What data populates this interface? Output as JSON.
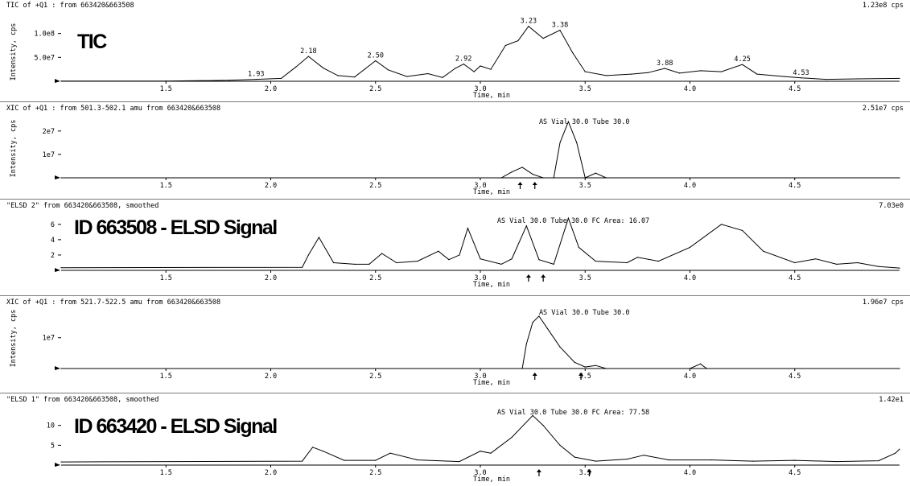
{
  "panels": [
    {
      "header_left": "TIC of +Q1 : from 663420&663508",
      "header_right": "1.23e8 cps",
      "overlay_label": "TIC",
      "ylabel": "Intensity, cps",
      "xlabel": "Time, min",
      "peak_labels": [
        "2.18",
        "2.50",
        "2.92",
        "3.23",
        "3.38",
        "3.88",
        "4.25",
        "4.53",
        "1.93"
      ],
      "annotation": ""
    },
    {
      "header_left": "XIC of +Q1 : from 501.3-502.1 amu from 663420&663508",
      "header_right": "2.51e7 cps",
      "overlay_label": "",
      "ylabel": "Intensity, cps",
      "xlabel": "Time, min",
      "peak_labels": [],
      "annotation": "AS Vial 30.0 Tube 30.0"
    },
    {
      "header_left": "\"ELSD 2\" from 663420&663508, smoothed",
      "header_right": "7.03e0",
      "overlay_label": "ID 663508 - ELSD Signal",
      "ylabel": "",
      "xlabel": "Time, min",
      "peak_labels": [],
      "annotation": "AS Vial 30.0 Tube 30.0    FC Area: 16.07"
    },
    {
      "header_left": "XIC of +Q1 : from 521.7-522.5 amu from 663420&663508",
      "header_right": "1.96e7 cps",
      "overlay_label": "",
      "ylabel": "Intensity, cps",
      "xlabel": "Time, min",
      "peak_labels": [],
      "annotation": "AS Vial 30.0 Tube 30.0"
    },
    {
      "header_left": "\"ELSD 1\" from 663420&663508, smoothed",
      "header_right": "1.42e1",
      "overlay_label": "ID 663420 - ELSD Signal",
      "ylabel": "",
      "xlabel": "Time, min",
      "peak_labels": [],
      "annotation": "AS Vial 30.0 Tube 30.0    FC Area: 77.58"
    }
  ],
  "chart_data": [
    {
      "type": "line",
      "title": "TIC of +Q1 : from 663420&663508",
      "xlabel": "Time, min",
      "ylabel": "Intensity, cps",
      "xlim": [
        1.0,
        5.0
      ],
      "ylim": [
        0,
        123000000.0
      ],
      "xticks": [
        1.5,
        2.0,
        2.5,
        3.0,
        3.5,
        4.0,
        4.5
      ],
      "yticks": [
        {
          "label": "5.0e7",
          "value": 50000000.0
        },
        {
          "label": "1.0e8",
          "value": 100000000.0
        }
      ],
      "series": [
        {
          "x": [
            1.0,
            1.5,
            1.8,
            1.93,
            2.05,
            2.12,
            2.18,
            2.25,
            2.32,
            2.4,
            2.45,
            2.5,
            2.56,
            2.65,
            2.75,
            2.82,
            2.88,
            2.92,
            2.97,
            3.0,
            3.05,
            3.12,
            3.18,
            3.23,
            3.3,
            3.38,
            3.44,
            3.5,
            3.6,
            3.72,
            3.8,
            3.88,
            3.95,
            4.05,
            4.15,
            4.25,
            4.32,
            4.45,
            4.53,
            4.65,
            4.8,
            5.0
          ],
          "y": [
            300000.0,
            400000.0,
            2000000.0,
            4000000.0,
            6000000.0,
            30000000.0,
            52000000.0,
            28000000.0,
            12000000.0,
            9000000.0,
            26000000.0,
            43000000.0,
            24000000.0,
            10000000.0,
            16000000.0,
            8000000.0,
            27000000.0,
            36000000.0,
            20000000.0,
            32000000.0,
            25000000.0,
            75000000.0,
            85000000.0,
            115000000.0,
            90000000.0,
            107000000.0,
            60000000.0,
            20000000.0,
            12000000.0,
            15000000.0,
            18000000.0,
            27000000.0,
            17000000.0,
            22000000.0,
            20000000.0,
            35000000.0,
            15000000.0,
            10000000.0,
            7000000.0,
            4000000.0,
            5000000.0,
            6000000.0
          ]
        }
      ],
      "peak_labels": [
        {
          "text": "2.18",
          "x": 2.18,
          "y": 52000000.0
        },
        {
          "text": "2.50",
          "x": 2.5,
          "y": 43000000.0
        },
        {
          "text": "2.92",
          "x": 2.92,
          "y": 36000000.0
        },
        {
          "text": "3.23",
          "x": 3.23,
          "y": 115000000.0
        },
        {
          "text": "3.38",
          "x": 3.38,
          "y": 107000000.0
        },
        {
          "text": "3.88",
          "x": 3.88,
          "y": 27000000.0
        },
        {
          "text": "4.25",
          "x": 4.25,
          "y": 35000000.0
        },
        {
          "text": "4.53",
          "x": 4.53,
          "y": 7000000.0
        },
        {
          "text": "1.93",
          "x": 1.93,
          "y": 4000000.0
        }
      ],
      "arrows": []
    },
    {
      "type": "line",
      "title": "XIC of +Q1 : from 501.3-502.1 amu from 663420&663508",
      "xlabel": "Time, min",
      "ylabel": "Intensity, cps",
      "xlim": [
        1.0,
        5.0
      ],
      "ylim": [
        0,
        25100000.0
      ],
      "xticks": [
        1.5,
        2.0,
        2.5,
        3.0,
        3.5,
        4.0,
        4.5
      ],
      "yticks": [
        {
          "label": "1e7",
          "value": 10000000.0
        },
        {
          "label": "2e7",
          "value": 20000000.0
        }
      ],
      "series": [
        {
          "x": [
            1.0,
            3.1,
            3.15,
            3.2,
            3.25,
            3.3,
            3.35,
            3.38,
            3.42,
            3.46,
            3.5,
            3.55,
            3.6,
            5.0
          ],
          "y": [
            0,
            0,
            2500000.0,
            4500000.0,
            1500000.0,
            0,
            0,
            15000000.0,
            24000000.0,
            15000000.0,
            0,
            2000000.0,
            0,
            0
          ]
        }
      ],
      "peak_labels": [],
      "annotation": {
        "text": "AS Vial 30.0 Tube 30.0",
        "x": 3.28,
        "y": 23000000.0
      },
      "arrows": [
        3.19,
        3.26
      ]
    },
    {
      "type": "line",
      "title": "\"ELSD 2\" from 663420&663508, smoothed",
      "xlabel": "Time, min",
      "ylabel": "",
      "xlim": [
        1.0,
        5.0
      ],
      "ylim": [
        0,
        7.03
      ],
      "xticks": [
        1.5,
        2.0,
        2.5,
        3.0,
        3.5,
        4.0,
        4.5
      ],
      "yticks": [
        {
          "label": "2",
          "value": 2
        },
        {
          "label": "4",
          "value": 4
        },
        {
          "label": "6",
          "value": 6
        }
      ],
      "series": [
        {
          "x": [
            1.0,
            2.15,
            2.18,
            2.23,
            2.3,
            2.4,
            2.47,
            2.53,
            2.6,
            2.7,
            2.8,
            2.85,
            2.9,
            2.94,
            3.0,
            3.1,
            3.15,
            3.22,
            3.28,
            3.35,
            3.42,
            3.47,
            3.55,
            3.7,
            3.75,
            3.85,
            4.0,
            4.15,
            4.25,
            4.35,
            4.5,
            4.6,
            4.7,
            4.8,
            4.9,
            5.0
          ],
          "y": [
            0.35,
            0.4,
            2.0,
            4.3,
            1.0,
            0.8,
            0.8,
            2.2,
            1.0,
            1.2,
            2.5,
            1.4,
            2.0,
            5.5,
            1.5,
            0.8,
            1.5,
            5.8,
            1.4,
            0.8,
            6.8,
            3.0,
            1.2,
            1.0,
            1.7,
            1.2,
            3.0,
            6.0,
            5.2,
            2.5,
            1.0,
            1.5,
            0.8,
            1.0,
            0.5,
            0.3
          ]
        }
      ],
      "peak_labels": [],
      "annotation": {
        "text": "AS Vial 30.0 Tube 30.0    FC Area: 16.07",
        "x": 3.08,
        "y": 6.2
      },
      "arrows": [
        3.23,
        3.3
      ]
    },
    {
      "type": "line",
      "title": "XIC of +Q1 : from 521.7-522.5 amu from 663420&663508",
      "xlabel": "Time, min",
      "ylabel": "Intensity, cps",
      "xlim": [
        1.0,
        5.0
      ],
      "ylim": [
        0,
        19600000.0
      ],
      "xticks": [
        1.5,
        2.0,
        2.5,
        3.0,
        3.5,
        4.0,
        4.5
      ],
      "yticks": [
        {
          "label": "1e7",
          "value": 10000000.0
        }
      ],
      "series": [
        {
          "x": [
            1.0,
            3.2,
            3.22,
            3.25,
            3.28,
            3.32,
            3.38,
            3.45,
            3.5,
            3.55,
            3.6,
            4.0,
            4.05,
            4.08,
            5.0
          ],
          "y": [
            0,
            0,
            8000000.0,
            15000000.0,
            17000000.0,
            13000000.0,
            7000000.0,
            2000000.0,
            500000.0,
            1000000.0,
            0,
            0,
            1500000.0,
            0,
            0
          ]
        }
      ],
      "peak_labels": [],
      "annotation": {
        "text": "AS Vial 30.0 Tube 30.0",
        "x": 3.28,
        "y": 17500000.0
      },
      "arrows": [
        3.26,
        3.48
      ]
    },
    {
      "type": "line",
      "title": "\"ELSD 1\" from 663420&663508, smoothed",
      "xlabel": "Time, min",
      "ylabel": "",
      "xlim": [
        1.0,
        5.0
      ],
      "ylim": [
        0,
        14.2
      ],
      "xticks": [
        1.5,
        2.0,
        2.5,
        3.0,
        3.5,
        4.0,
        4.5
      ],
      "yticks": [
        {
          "label": "5",
          "value": 5
        },
        {
          "label": "10",
          "value": 10
        }
      ],
      "series": [
        {
          "x": [
            1.0,
            2.15,
            2.2,
            2.25,
            2.35,
            2.5,
            2.57,
            2.7,
            2.9,
            3.0,
            3.05,
            3.15,
            3.25,
            3.3,
            3.38,
            3.45,
            3.55,
            3.7,
            3.78,
            3.9,
            4.1,
            4.3,
            4.5,
            4.7,
            4.9,
            4.98,
            5.0
          ],
          "y": [
            0.8,
            1.0,
            4.5,
            3.5,
            1.2,
            1.2,
            3.0,
            1.3,
            0.9,
            3.5,
            3.0,
            7.0,
            12.5,
            10.0,
            5.0,
            2.0,
            1.0,
            1.5,
            2.5,
            1.3,
            1.3,
            1.0,
            1.2,
            0.9,
            1.1,
            3.0,
            4.0
          ]
        }
      ],
      "peak_labels": [],
      "annotation": {
        "text": "AS Vial 30.0 Tube 30.0    FC Area: 77.58",
        "x": 3.08,
        "y": 12.8
      },
      "arrows": [
        3.28,
        3.52
      ]
    }
  ]
}
